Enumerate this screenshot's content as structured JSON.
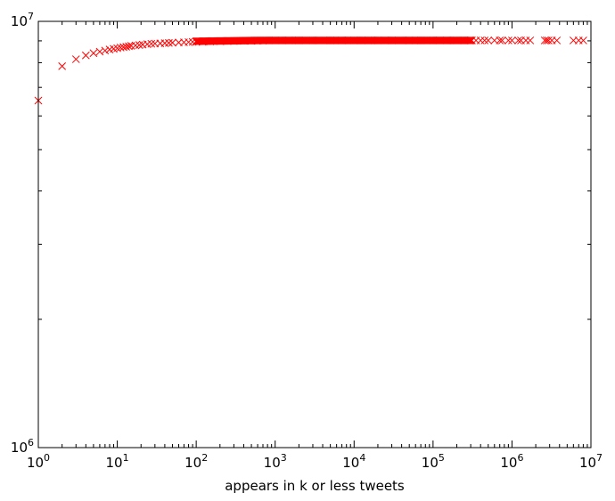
{
  "chart_data": {
    "type": "scatter",
    "title": "",
    "xlabel": "appears in k or less tweets",
    "ylabel": "",
    "xscale": "log",
    "yscale": "log",
    "xlim": [
      1,
      10000000
    ],
    "ylim": [
      1000000,
      10000000
    ],
    "grid": false,
    "marker": "x",
    "color": "#ff0000",
    "x_ticks": [
      {
        "base": "10",
        "exp": "0"
      },
      {
        "base": "10",
        "exp": "1"
      },
      {
        "base": "10",
        "exp": "2"
      },
      {
        "base": "10",
        "exp": "3"
      },
      {
        "base": "10",
        "exp": "4"
      },
      {
        "base": "10",
        "exp": "5"
      },
      {
        "base": "10",
        "exp": "6"
      },
      {
        "base": "10",
        "exp": "7"
      }
    ],
    "y_ticks": [
      {
        "base": "10",
        "exp": "6"
      },
      {
        "base": "10",
        "exp": "7"
      }
    ],
    "series": [
      {
        "x": [
          1,
          2,
          3,
          4,
          5,
          6,
          7,
          8,
          9,
          10,
          11,
          12,
          13,
          14,
          15,
          17,
          19,
          21,
          24,
          27,
          30,
          35,
          40,
          45,
          50,
          60,
          70,
          80,
          90,
          100,
          120,
          150,
          200,
          250,
          300,
          400,
          500,
          600,
          700,
          1000,
          1500,
          2000,
          3000,
          5000,
          7000,
          10000,
          15000,
          20000,
          30000,
          50000,
          70000,
          100000,
          150000,
          200000,
          250000,
          300000,
          350000,
          400000,
          450000,
          500000,
          600000,
          700000,
          750000,
          900000,
          1000000,
          1200000,
          1300000,
          1500000,
          1700000,
          2600000,
          2750000,
          2900000,
          3200000,
          3700000,
          6000000,
          7000000,
          8000000
        ],
        "y": [
          6520000,
          7850000,
          8150000,
          8320000,
          8420000,
          8490000,
          8540000,
          8590000,
          8620000,
          8650000,
          8680000,
          8700000,
          8720000,
          8740000,
          8760000,
          8780000,
          8800000,
          8820000,
          8840000,
          8860000,
          8870000,
          8880000,
          8890000,
          8900000,
          8910000,
          8920000,
          8930000,
          8940000,
          8950000,
          8950000,
          8960000,
          8970000,
          8980000,
          8990000,
          8990000,
          9000000,
          9000000,
          9010000,
          9010000,
          9020000,
          9020000,
          9020000,
          9020000,
          9020000,
          9020000,
          9020000,
          9020000,
          9020000,
          9020000,
          9020000,
          9020000,
          9020000,
          9020000,
          9020000,
          9020000,
          9020000,
          9020000,
          9020000,
          9020000,
          9020000,
          9020000,
          9020000,
          9020000,
          9020000,
          9020000,
          9020000,
          9020000,
          9020000,
          9020000,
          9020000,
          9020000,
          9020000,
          9020000,
          9020000,
          9020000,
          9020000,
          9020000
        ]
      }
    ]
  }
}
